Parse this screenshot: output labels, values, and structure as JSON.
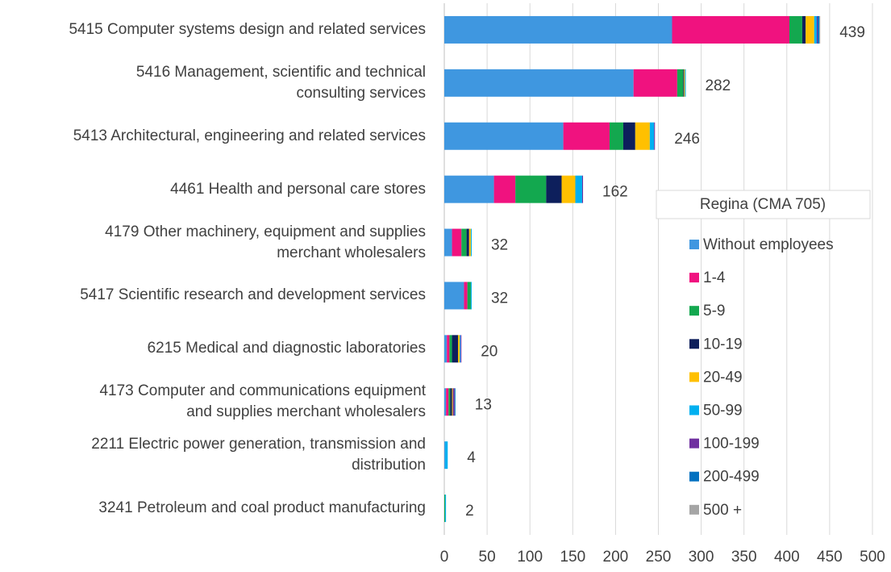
{
  "chart_data": {
    "type": "stacked_barh",
    "categories": [
      "5415 Computer systems design and related services",
      "5416 Management, scientific and technical\nconsulting services",
      "5413 Architectural, engineering and related services",
      "4461 Health and personal care stores",
      "4179 Other machinery, equipment and supplies\nmerchant wholesalers",
      "5417 Scientific research and development services",
      "6215 Medical and diagnostic laboratories",
      "4173 Computer and communications equipment\nand supplies merchant wholesalers",
      "2211 Electric power generation, transmission and\ndistribution",
      "3241 Petroleum and coal product manufacturing"
    ],
    "series": [
      {
        "name": "Without employees",
        "color": "#3f97e0",
        "values": [
          266,
          221,
          139,
          58,
          9,
          23,
          3,
          2,
          1,
          0
        ]
      },
      {
        "name": "1-4",
        "color": "#f0127f",
        "values": [
          137,
          51,
          54,
          25,
          11,
          4,
          3,
          3,
          0,
          0
        ]
      },
      {
        "name": "5-9",
        "color": "#13a84f",
        "values": [
          15,
          7,
          16,
          36,
          6,
          4,
          3,
          2,
          0,
          1
        ]
      },
      {
        "name": "10-19",
        "color": "#0d1f5c",
        "values": [
          4,
          1,
          14,
          18,
          3,
          0,
          7,
          2,
          0,
          0
        ]
      },
      {
        "name": "20-49",
        "color": "#ffc000",
        "values": [
          10,
          1,
          17,
          16,
          2,
          0,
          2,
          1,
          0,
          0
        ]
      },
      {
        "name": "50-99",
        "color": "#00b0f0",
        "values": [
          3,
          1,
          5,
          8,
          1,
          1,
          1,
          0,
          3,
          1
        ]
      },
      {
        "name": "100-199",
        "color": "#7030a0",
        "values": [
          1,
          0,
          1,
          1,
          0,
          0,
          1,
          2,
          0,
          0
        ]
      },
      {
        "name": "200-499",
        "color": "#0070c0",
        "values": [
          2,
          0,
          0,
          0,
          0,
          0,
          0,
          1,
          0,
          0
        ]
      },
      {
        "name": "500 +",
        "color": "#a5a5a5",
        "values": [
          1,
          0,
          0,
          0,
          0,
          0,
          0,
          0,
          0,
          0
        ]
      }
    ],
    "totals": [
      439,
      282,
      246,
      162,
      32,
      32,
      20,
      13,
      4,
      2
    ],
    "legend_title": "Regina (CMA 705)",
    "legend": "right",
    "xlim": [
      0,
      500
    ],
    "xticks": [
      0,
      50,
      100,
      150,
      200,
      250,
      300,
      350,
      400,
      450,
      500
    ],
    "grid": true
  }
}
